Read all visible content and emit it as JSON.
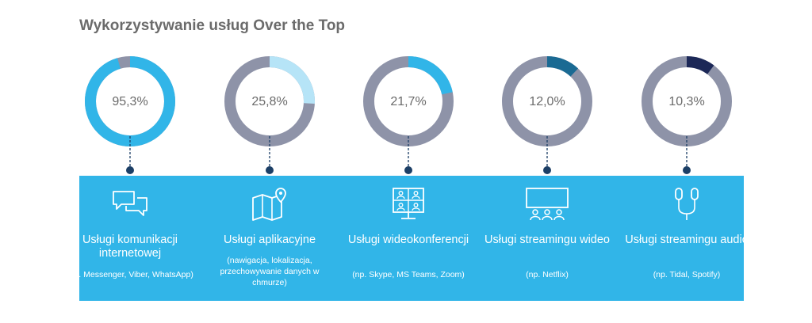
{
  "title": "Wykorzystywanie usług Over the Top",
  "colors": {
    "track": "#8e93a8",
    "band": "#31b5e8"
  },
  "chart_data": {
    "type": "pie",
    "title": "Wykorzystywanie usług Over the Top",
    "unit": "%",
    "series": [
      {
        "label": "95,3%",
        "value": 95.3,
        "color": "#31b5e8",
        "category": "Usługi komunikacji internetowej",
        "examples": "(np. Messenger, Viber, WhatsApp)",
        "icon": "chat-bubbles-icon"
      },
      {
        "label": "25,8%",
        "value": 25.8,
        "color": "#b6e4f7",
        "category": "Usługi aplikacyjne",
        "examples": "(nawigacja, lokalizacja, przechowywanie danych w chmurze)",
        "icon": "map-pin-icon"
      },
      {
        "label": "21,7%",
        "value": 21.7,
        "color": "#31b5e8",
        "category": "Usługi wideokonferencji",
        "examples": "(np. Skype, MS Teams, Zoom)",
        "icon": "video-conference-icon"
      },
      {
        "label": "12,0%",
        "value": 12.0,
        "color": "#1a6a93",
        "category": "Usługi streamingu wideo",
        "examples": "(np. Netflix)",
        "icon": "cinema-screen-icon"
      },
      {
        "label": "10,3%",
        "value": 10.3,
        "color": "#1c2857",
        "category": "Usługi streamingu audio",
        "examples": "(np. Tidal, Spotify)",
        "icon": "earphones-icon"
      }
    ]
  }
}
